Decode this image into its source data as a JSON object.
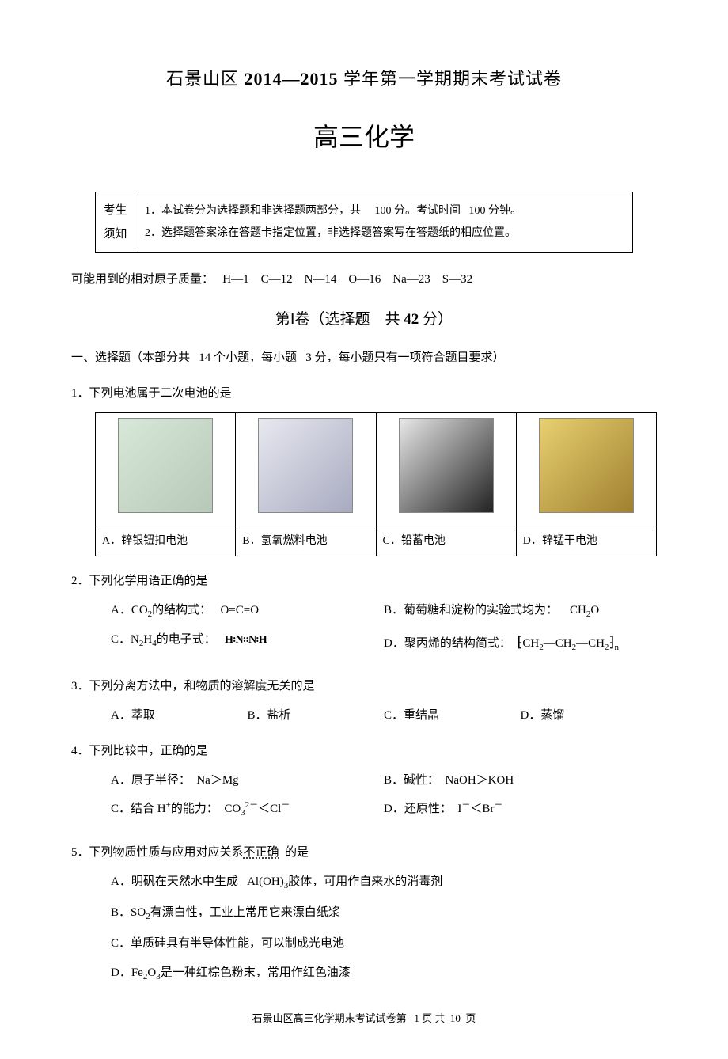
{
  "header": {
    "district": "石景山区",
    "year_range": "2014—2015",
    "title_tail": "学年第一学期期末考试试卷",
    "subject": "高三化学"
  },
  "notice": {
    "left_line1": "考生",
    "left_line2": "须知",
    "line1_a": "1．本试卷分为选择题和非选择题两部分，共",
    "line1_b": "100",
    "line1_c": "分。考试时间",
    "line1_d": "100",
    "line1_e": "分钟。",
    "line2": "2．选择题答案涂在答题卡指定位置，非选择题答案写在答题纸的相应位置。"
  },
  "atomic": {
    "label": "可能用到的相对原子质量：",
    "values": "H—1　C—12　N—14　O—16　Na—23　S—32"
  },
  "section1": {
    "title_a": "第Ⅰ卷（选择题",
    "title_b": "共",
    "title_c": "42",
    "title_d": "分）"
  },
  "instruct": {
    "a": "一、选择题（本部分共",
    "b": "14",
    "c": "个小题，每小题",
    "d": "3",
    "e": "分，每小题只有一项符合题目要求）"
  },
  "q1": {
    "stem": "1．下列电池属于二次电池的是",
    "optA": "A．锌银钮扣电池",
    "optB": "B．氢氧燃料电池",
    "optC": "C．铅蓄电池",
    "optD": "D．锌锰干电池"
  },
  "q2": {
    "stem": "2．下列化学用语正确的是",
    "A_label": "A．CO",
    "A_sub": "2",
    "A_tail": "的结构式：",
    "A_val": "O=C=O",
    "B_label": "B．葡萄糖和淀粉的实验式均为：",
    "B_val": "CH",
    "B_sub": "2",
    "B_val2": "O",
    "C_label": "C．N",
    "C_sub1": "2",
    "C_mid": "H",
    "C_sub2": "4",
    "C_tail": "的电子式：",
    "D_label": "D．聚丙烯的结构简式：",
    "D_val1": "CH",
    "D_val2": "—CH",
    "D_val3": "—CH"
  },
  "q3": {
    "stem": "3．下列分离方法中，和物质的溶解度无关的是",
    "A": "A．萃取",
    "B": "B．盐析",
    "C": "C．重结晶",
    "D": "D．蒸馏"
  },
  "q4": {
    "stem": "4．下列比较中，正确的是",
    "A_a": "A．原子半径：",
    "A_b": "Na＞Mg",
    "B_a": "B．碱性：",
    "B_b": "NaOH＞KOH",
    "C_a": "C．结合 H",
    "C_b": "的能力：",
    "C_c": "CO",
    "C_d": "＜Cl",
    "D_a": "D．还原性：",
    "D_b": "I",
    "D_c": "＜Br"
  },
  "q5": {
    "stem_a": "5．下列物质性质与应用对应关系",
    "stem_u": "不正确",
    "stem_b": "的是",
    "A_a": "A．明矾在天然水中生成",
    "A_b": "Al(OH)",
    "A_sub": "3",
    "A_c": "胶体，可用作自来水的消毒剂",
    "B_a": "B．SO",
    "B_sub": "2",
    "B_b": "有漂白性，工业上常用它来漂白纸浆",
    "C": "C．单质硅具有半导体性能，可以制成光电池",
    "D_a": "D．Fe",
    "D_sub1": "2",
    "D_b": "O",
    "D_sub2": "3",
    "D_c": "是一种红棕色粉末，常用作红色油漆"
  },
  "footer": {
    "a": "石景山区高三化学期末考试试卷第",
    "b": "1",
    "c": "页 共",
    "d": "10",
    "e": "页"
  }
}
